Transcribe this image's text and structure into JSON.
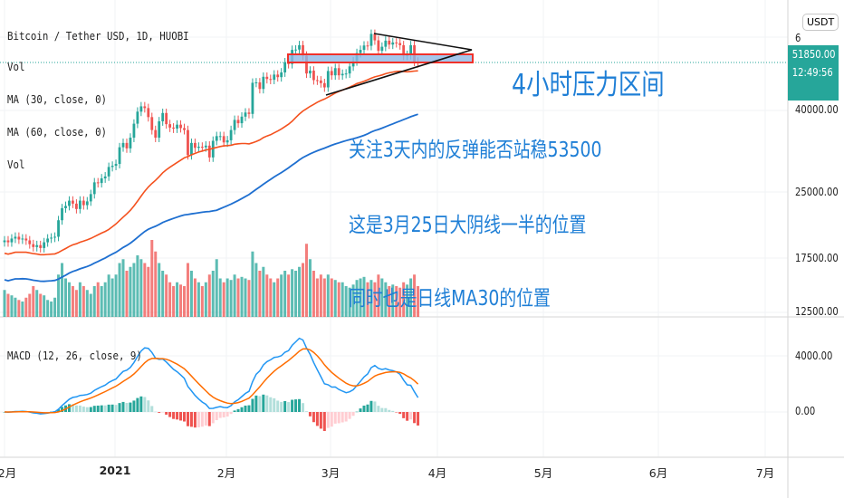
{
  "header": {
    "title": "Bitcoin / Tether USD, 1D, HUOBI",
    "indicators": [
      "Vol",
      "MA (30, close, 0)",
      "MA (60, close, 0)",
      "Vol"
    ],
    "macd_label": "MACD (12, 26, close, 9)"
  },
  "price_axis": {
    "labels": [
      "6",
      "40000.00",
      "25000.00",
      "17500.00",
      "12500.00"
    ],
    "currency": "USDT",
    "last_price": "51850.00",
    "countdown": "12:49:56"
  },
  "macd_axis": {
    "labels": [
      "4000.00",
      "0.00"
    ]
  },
  "time_axis": {
    "labels": [
      "2月",
      "2021",
      "2月",
      "3月",
      "4月",
      "5月",
      "6月",
      "7月"
    ]
  },
  "annotations": {
    "zone_label": "4小时压力区间",
    "line1": "关注3天内的反弹能否站稳53500",
    "line2": "这是3月25日大阴线一半的位置",
    "line3": "同时也是日线MA30的位置"
  },
  "colors": {
    "up": "#26a69a",
    "down": "#ef5350",
    "ma30": "#f4511e",
    "ma60": "#1e6fd0",
    "macd": "#2196f3",
    "signal": "#ff6d00",
    "note": "#1f7fd6"
  },
  "chart_data": {
    "type": "candlestick",
    "scale": "log",
    "ylim": [
      12500,
      62000
    ],
    "closes": {
      "2020-12": [
        19000,
        18800,
        19200,
        19400,
        19100,
        19200,
        19000,
        18600,
        18300,
        18500,
        18200,
        18800,
        19200,
        19300,
        19400,
        21300,
        22800,
        23100,
        23800,
        23400,
        22700,
        23800,
        23200,
        23700,
        24700,
        26400,
        26300,
        27000,
        27300,
        28800,
        29000
      ],
      "2021-01": [
        29300,
        32200,
        33000,
        32000,
        34000,
        36800,
        39400,
        40600,
        40200,
        38200,
        35500,
        34000,
        37300,
        39100,
        36700,
        36000,
        35800,
        36600,
        35900,
        35500,
        30800,
        33000,
        32100,
        32300,
        32200,
        32500,
        30400,
        33400,
        34300,
        34300,
        33100
      ],
      "2021-02": [
        33500,
        35500,
        37600,
        36900,
        38300,
        39200,
        38900,
        46400,
        46500,
        44800,
        48000,
        47400,
        47200,
        48600,
        47900,
        49200,
        52100,
        51600,
        55900,
        56000,
        57400,
        54100,
        48900,
        49700,
        47100,
        47000,
        46300,
        45200
      ],
      "2021-03": [
        49600,
        48400,
        50400,
        48400,
        48800,
        48900,
        50900,
        52400,
        54900,
        55900,
        57300,
        57200,
        61200,
        59000,
        55600,
        56900,
        58900,
        57600,
        58300,
        58100,
        57400,
        54100,
        54300,
        57400,
        52300,
        51850
      ]
    },
    "volumes": {
      "2020-12": [
        35,
        30,
        28,
        25,
        22,
        20,
        25,
        30,
        40,
        35,
        30,
        28,
        22,
        20,
        25,
        55,
        70,
        50,
        45,
        40,
        35,
        45,
        40,
        35,
        30,
        40,
        45,
        40,
        45,
        55,
        50
      ],
      "2021-01": [
        55,
        70,
        75,
        60,
        65,
        70,
        80,
        75,
        70,
        65,
        100,
        85,
        70,
        60,
        55,
        45,
        40,
        45,
        42,
        40,
        70,
        60,
        50,
        45,
        40,
        45,
        55,
        60,
        75,
        50,
        45
      ],
      "2021-02": [
        50,
        48,
        55,
        50,
        52,
        50,
        48,
        85,
        70,
        60,
        65,
        55,
        50,
        45,
        50,
        55,
        60,
        55,
        62,
        60,
        65,
        70,
        95,
        75,
        60,
        50,
        55,
        50
      ],
      "2021-03": [
        55,
        50,
        48,
        45,
        45,
        40,
        38,
        42,
        48,
        50,
        52,
        45,
        48,
        45,
        55,
        50,
        45,
        40,
        42,
        40,
        38,
        45,
        42,
        50,
        55,
        40
      ]
    },
    "resistance_zone": [
      52000,
      54000
    ],
    "ma_periods": [
      30,
      60
    ],
    "macd_params": [
      12,
      26,
      9
    ]
  }
}
